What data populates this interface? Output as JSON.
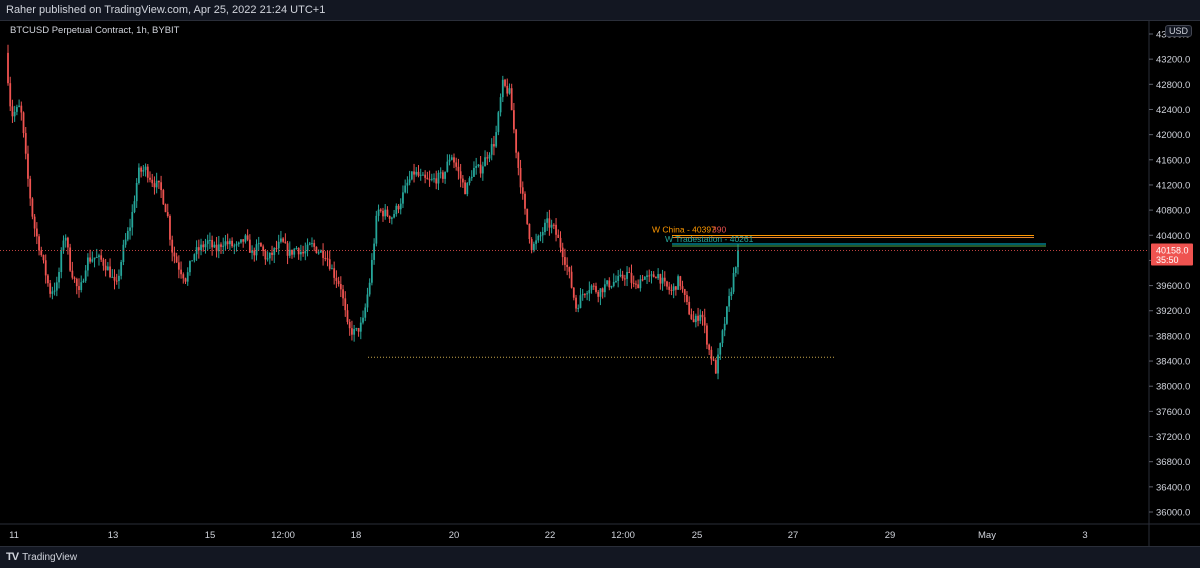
{
  "header": {
    "publisher_line": "Raher published on TradingView.com, Apr 25, 2022 21:24 UTC+1"
  },
  "chart": {
    "symbol_title": "BTCUSD Perpetual Contract, 1h, BYBIT",
    "currency": "USD",
    "price_label": "40158.0",
    "countdown": "35:50"
  },
  "footer": {
    "brand": "TradingView"
  },
  "colors": {
    "up": "#26a69a",
    "down": "#ef5350",
    "bg": "#000000",
    "orange": "#ff9800",
    "green": "#4caf50",
    "teal": "#00bcd4"
  },
  "chart_data": {
    "type": "candlestick",
    "y_ticks": [
      "43600.0",
      "43200.0",
      "42800.0",
      "42400.0",
      "42000.0",
      "41600.0",
      "41200.0",
      "40800.0",
      "40400.0",
      "40000.0",
      "39600.0",
      "39200.0",
      "38800.0",
      "38400.0",
      "38000.0",
      "37600.0",
      "37200.0",
      "36800.0",
      "36400.0",
      "36000.0"
    ],
    "ylim": [
      35800,
      43750
    ],
    "x_ticks": [
      "11",
      "13",
      "15",
      "12:00",
      "18",
      "20",
      "22",
      "12:00",
      "25",
      "27",
      "29",
      "May",
      "3"
    ],
    "last_price": 40158.0,
    "annotations": [
      {
        "text": "W China - 40397",
        "price": 40397,
        "color": "#ff9800"
      },
      {
        "text": "390",
        "price": 40390,
        "color": "#ef5350"
      },
      {
        "text": "W Tradestation - 40261",
        "price": 40261,
        "color": "#26a69a"
      }
    ],
    "support_line": {
      "price": 38460
    },
    "path": [
      [
        0,
        43300
      ],
      [
        0.03,
        42300
      ],
      [
        0.08,
        42450
      ],
      [
        0.12,
        41300
      ],
      [
        0.15,
        40600
      ],
      [
        0.2,
        40000
      ],
      [
        0.24,
        39500
      ],
      [
        0.28,
        39600
      ],
      [
        0.32,
        40500
      ],
      [
        0.35,
        39900
      ],
      [
        0.4,
        39450
      ],
      [
        0.44,
        40000
      ],
      [
        0.48,
        40050
      ],
      [
        0.52,
        40000
      ],
      [
        0.56,
        39850
      ],
      [
        0.6,
        39550
      ],
      [
        0.64,
        40200
      ],
      [
        0.68,
        40600
      ],
      [
        0.72,
        41400
      ],
      [
        0.76,
        41450
      ],
      [
        0.8,
        41250
      ],
      [
        0.84,
        41150
      ],
      [
        0.88,
        40700
      ],
      [
        0.9,
        40200
      ],
      [
        0.94,
        39900
      ],
      [
        0.98,
        39700
      ],
      [
        1.02,
        40100
      ],
      [
        1.06,
        40200
      ],
      [
        1.1,
        40300
      ],
      [
        1.14,
        40150
      ],
      [
        1.18,
        40300
      ],
      [
        1.22,
        40250
      ],
      [
        1.26,
        40200
      ],
      [
        1.3,
        40350
      ],
      [
        1.34,
        40100
      ],
      [
        1.38,
        40250
      ],
      [
        1.42,
        40000
      ],
      [
        1.46,
        40150
      ],
      [
        1.5,
        40300
      ],
      [
        1.54,
        40100
      ],
      [
        1.58,
        40200
      ],
      [
        1.62,
        40100
      ],
      [
        1.66,
        40250
      ],
      [
        1.7,
        40150
      ],
      [
        1.74,
        40100
      ],
      [
        1.78,
        39800
      ],
      [
        1.82,
        39600
      ],
      [
        1.86,
        38900
      ],
      [
        1.9,
        38850
      ],
      [
        1.94,
        39000
      ],
      [
        1.98,
        39700
      ],
      [
        2.02,
        40800
      ],
      [
        2.06,
        40750
      ],
      [
        2.1,
        40700
      ],
      [
        2.14,
        40900
      ],
      [
        2.18,
        41200
      ],
      [
        2.22,
        41400
      ],
      [
        2.26,
        41300
      ],
      [
        2.3,
        41250
      ],
      [
        2.34,
        41300
      ],
      [
        2.38,
        41350
      ],
      [
        2.42,
        41700
      ],
      [
        2.46,
        41400
      ],
      [
        2.5,
        41100
      ],
      [
        2.54,
        41450
      ],
      [
        2.58,
        41450
      ],
      [
        2.62,
        41700
      ],
      [
        2.66,
        41900
      ],
      [
        2.7,
        42800
      ],
      [
        2.74,
        42650
      ],
      [
        2.78,
        41600
      ],
      [
        2.82,
        40800
      ],
      [
        2.86,
        40200
      ],
      [
        2.9,
        40350
      ],
      [
        2.94,
        40600
      ],
      [
        2.98,
        40500
      ],
      [
        3.02,
        40200
      ],
      [
        3.06,
        39800
      ],
      [
        3.1,
        39250
      ],
      [
        3.14,
        39500
      ],
      [
        3.18,
        39600
      ],
      [
        3.22,
        39500
      ],
      [
        3.26,
        39600
      ],
      [
        3.3,
        39650
      ],
      [
        3.34,
        39700
      ],
      [
        3.38,
        39800
      ],
      [
        3.42,
        39550
      ],
      [
        3.46,
        39750
      ],
      [
        3.5,
        39700
      ],
      [
        3.54,
        39800
      ],
      [
        3.58,
        39600
      ],
      [
        3.62,
        39500
      ],
      [
        3.66,
        39700
      ],
      [
        3.7,
        39300
      ],
      [
        3.74,
        39000
      ],
      [
        3.78,
        39200
      ],
      [
        3.82,
        38600
      ],
      [
        3.86,
        38250
      ],
      [
        3.9,
        38900
      ],
      [
        3.94,
        39500
      ],
      [
        3.98,
        40158
      ]
    ]
  }
}
